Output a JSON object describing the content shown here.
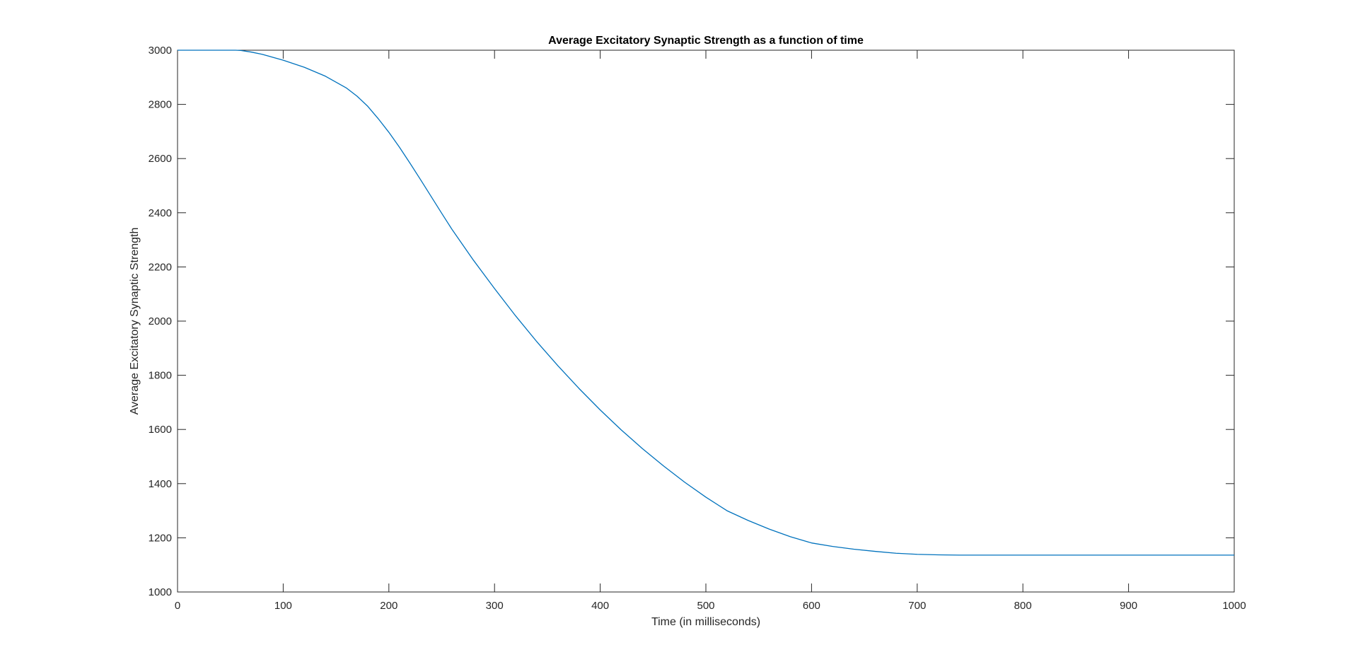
{
  "colors": {
    "series": "#0072BD",
    "axes": "#262626",
    "background": "#ffffff"
  },
  "chart_data": {
    "type": "line",
    "title": "Average Excitatory Synaptic Strength as a function of time",
    "xlabel": "Time (in milliseconds)",
    "ylabel": "Average Excitatory Synaptic Strength",
    "xlim": [
      0,
      1000
    ],
    "ylim": [
      1000,
      3000
    ],
    "xticks": [
      0,
      100,
      200,
      300,
      400,
      500,
      600,
      700,
      800,
      900,
      1000
    ],
    "yticks": [
      1000,
      1200,
      1400,
      1600,
      1800,
      2000,
      2200,
      2400,
      2600,
      2800,
      3000
    ],
    "grid": false,
    "box": true,
    "series": [
      {
        "x": [
          0,
          20,
          40,
          55,
          60,
          70,
          80,
          100,
          120,
          140,
          160,
          170,
          180,
          190,
          200,
          210,
          220,
          230,
          240,
          250,
          260,
          280,
          300,
          320,
          340,
          360,
          380,
          400,
          420,
          440,
          460,
          480,
          500,
          520,
          540,
          560,
          580,
          600,
          620,
          640,
          660,
          680,
          700,
          720,
          740,
          760,
          800,
          900,
          1000
        ],
        "y": [
          3000,
          3000,
          3000,
          3000,
          2999,
          2993,
          2985,
          2963,
          2937,
          2904,
          2860,
          2830,
          2793,
          2747,
          2697,
          2642,
          2583,
          2522,
          2460,
          2398,
          2337,
          2225,
          2120,
          2019,
          1924,
          1835,
          1751,
          1672,
          1598,
          1529,
          1465,
          1405,
          1350,
          1300,
          1264,
          1232,
          1204,
          1181,
          1168,
          1158,
          1150,
          1143,
          1139,
          1137,
          1136,
          1136,
          1136,
          1136,
          1136
        ]
      }
    ]
  }
}
